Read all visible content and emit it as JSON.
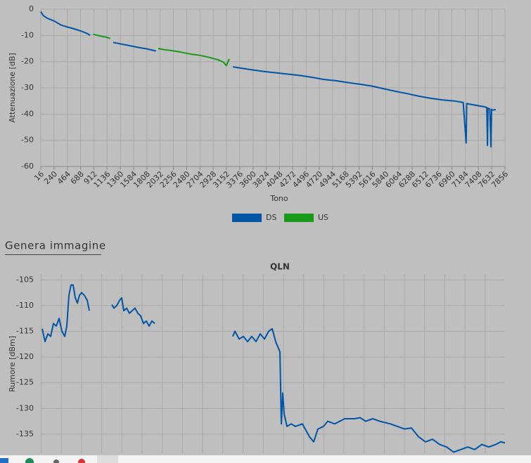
{
  "chart_data": [
    {
      "type": "line",
      "x_label": "Tono",
      "y_label": "Attenuazione [dB]",
      "x": [
        16,
        60,
        128,
        240,
        352,
        464,
        576,
        688,
        800,
        850,
        900,
        1012,
        1124,
        1190,
        1240,
        1352,
        1464,
        1576,
        1688,
        1800,
        1912,
        1960,
        2000,
        2112,
        2224,
        2336,
        2448,
        2560,
        2672,
        2784,
        2896,
        3008,
        3100,
        3150,
        3200,
        3260,
        3400,
        3600,
        3800,
        4000,
        4200,
        4400,
        4600,
        4800,
        5000,
        5200,
        5400,
        5600,
        5800,
        6000,
        6200,
        6400,
        6600,
        6800,
        7000,
        7150,
        7200,
        7210,
        7250,
        7400,
        7500,
        7550,
        7560,
        7570,
        7600,
        7620,
        7630,
        7640,
        7700
      ],
      "series": [
        {
          "name": "DS",
          "color": "#0055a5",
          "values": [
            -1,
            -2.5,
            -3.5,
            -4.5,
            -6,
            -6.8,
            -7.5,
            -8.3,
            -9.3,
            -10,
            null,
            null,
            null,
            null,
            -12.7,
            -13.2,
            -13.7,
            -14.2,
            -14.7,
            -15.1,
            -15.7,
            -16,
            null,
            null,
            null,
            null,
            null,
            null,
            null,
            null,
            null,
            null,
            null,
            null,
            null,
            -22,
            -22.5,
            -23.2,
            -23.8,
            -24.3,
            -24.8,
            -25.3,
            -26,
            -26.8,
            -27.3,
            -28,
            -28.6,
            -29.3,
            -30.3,
            -31.3,
            -32.2,
            -33.2,
            -34,
            -34.6,
            -35,
            -35.6,
            -51,
            -36,
            -36.2,
            -36.8,
            -37.2,
            -37.5,
            -52,
            -37.8,
            -38,
            -52.5,
            -38.2,
            -38.5,
            -38.3
          ]
        },
        {
          "name": "US",
          "color": "#1a9a1a",
          "values": [
            null,
            null,
            null,
            null,
            null,
            null,
            null,
            null,
            null,
            null,
            -9.6,
            -10.2,
            -10.7,
            -11.2,
            null,
            null,
            null,
            null,
            null,
            null,
            null,
            null,
            -15,
            -15.5,
            -15.8,
            -16.2,
            -16.7,
            -17.2,
            -17.5,
            -18,
            -18.6,
            -19.3,
            -20.2,
            -21.5,
            -19,
            null,
            null,
            null,
            null,
            null,
            null,
            null,
            null,
            null,
            null,
            null,
            null,
            null,
            null,
            null,
            null,
            null,
            null,
            null,
            null,
            null,
            null,
            null,
            null,
            null,
            null,
            null,
            null,
            null,
            null,
            null,
            null,
            null,
            null
          ]
        }
      ],
      "xlim": [
        16,
        7856
      ],
      "xticks": [
        16,
        240,
        464,
        688,
        912,
        1136,
        1360,
        1584,
        1808,
        2032,
        2256,
        2480,
        2704,
        2928,
        3152,
        3376,
        3600,
        3824,
        4048,
        4272,
        4496,
        4720,
        4944,
        5168,
        5392,
        5616,
        5840,
        6064,
        6288,
        6512,
        6736,
        6960,
        7184,
        7408,
        7632,
        7856
      ],
      "ylim": [
        -60,
        0
      ],
      "yticks": [
        0,
        -10,
        -20,
        -30,
        -40,
        -50,
        -60
      ],
      "grid": true,
      "legend": "bottom"
    },
    {
      "type": "line",
      "title": "QLN",
      "y_label": "Rumore [dBm]",
      "x": [
        40,
        87,
        135,
        182,
        230,
        277,
        325,
        372,
        420,
        456,
        491,
        527,
        562,
        598,
        634,
        669,
        705,
        753,
        800,
        836,
        1000,
        1216,
        1251,
        1299,
        1346,
        1382,
        1418,
        1465,
        1513,
        1560,
        1608,
        1655,
        1703,
        1750,
        1798,
        1845,
        1893,
        1940,
        2600,
        3259,
        3295,
        3366,
        3437,
        3508,
        3580,
        3651,
        3722,
        3794,
        3865,
        3924,
        3984,
        4055,
        4079,
        4102,
        4126,
        4174,
        4245,
        4316,
        4435,
        4554,
        4625,
        4696,
        4791,
        4863,
        4981,
        5148,
        5314,
        5409,
        5504,
        5623,
        5742,
        5920,
        6039,
        6157,
        6276,
        6395,
        6514,
        6633,
        6751,
        6870,
        6989,
        7108,
        7227,
        7345,
        7464,
        7583,
        7702,
        7785,
        7856
      ],
      "values": [
        -114.5,
        -117,
        -115.5,
        -116,
        -113.5,
        -114,
        -112.5,
        -115,
        -116,
        -114,
        -108,
        -106,
        -106,
        -108.5,
        -109.5,
        -108,
        -107.5,
        -108,
        -109,
        -111,
        null,
        -109.8,
        -110.5,
        -110,
        -109,
        -108.5,
        -111,
        -110.5,
        -111.5,
        -111,
        -110.5,
        -111.5,
        -112,
        -113.5,
        -113,
        -114,
        -113,
        -113.5,
        null,
        -116,
        -115,
        -116.5,
        -116,
        -117,
        -116,
        -117,
        -115.5,
        -116.5,
        -115,
        -114.5,
        -117,
        -119,
        -133,
        -127,
        -131,
        -133.5,
        -133,
        -133.5,
        -133,
        -135.5,
        -136.5,
        -134,
        -133.5,
        -132.5,
        -133,
        -132,
        -132,
        -131.8,
        -132.5,
        -132,
        -132.5,
        -133,
        -133.5,
        -134,
        -133.8,
        -135.5,
        -136.5,
        -136,
        -137,
        -137.5,
        -138.5,
        -138,
        -137.5,
        -138,
        -137,
        -137.5,
        -137,
        -136.5,
        -136.7
      ],
      "color": "#0055a5",
      "xlim": [
        16,
        7856
      ],
      "ylim": [
        -138.7,
        -104
      ],
      "yticks": [
        -105,
        -110,
        -115,
        -120,
        -125,
        -130,
        -135
      ],
      "grid": true
    }
  ],
  "export_link": "Genera immagine"
}
